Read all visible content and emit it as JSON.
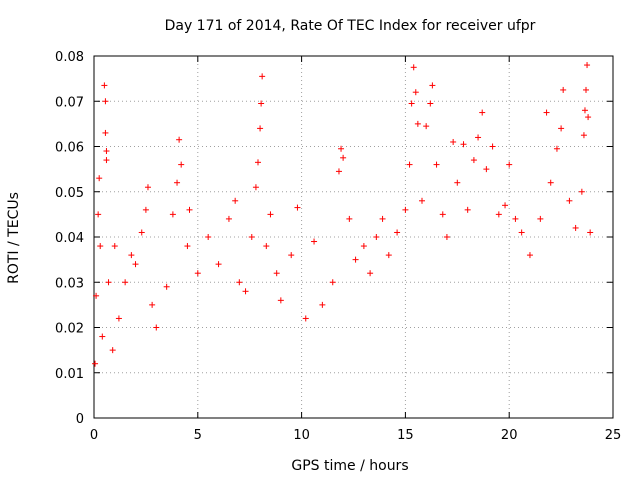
{
  "chart_data": {
    "type": "scatter",
    "title": "Day 171 of 2014, Rate Of TEC Index for receiver ufpr",
    "xlabel": "GPS time / hours",
    "ylabel": "ROTI / TECUs",
    "xlim": [
      0,
      25
    ],
    "ylim": [
      0,
      0.08
    ],
    "grid": true,
    "marker": "+",
    "color": "#ff0000",
    "x_ticks": [
      0,
      5,
      10,
      15,
      20,
      25
    ],
    "x_tick_labels": [
      "0",
      "5",
      "10",
      "15",
      "20",
      "25"
    ],
    "y_ticks": [
      0,
      0.01,
      0.02,
      0.03,
      0.04,
      0.05,
      0.06,
      0.07,
      0.08
    ],
    "y_tick_labels": [
      "0",
      "0.01",
      "0.02",
      "0.03",
      "0.04",
      "0.05",
      "0.06",
      "0.07",
      "0.08"
    ],
    "series": [
      {
        "name": "ROTI",
        "points": [
          [
            0.05,
            0.012
          ],
          [
            0.1,
            0.027
          ],
          [
            0.2,
            0.045
          ],
          [
            0.25,
            0.053
          ],
          [
            0.3,
            0.038
          ],
          [
            0.4,
            0.018
          ],
          [
            0.5,
            0.0735
          ],
          [
            0.55,
            0.07
          ],
          [
            0.55,
            0.063
          ],
          [
            0.6,
            0.059
          ],
          [
            0.6,
            0.057
          ],
          [
            0.7,
            0.03
          ],
          [
            0.9,
            0.015
          ],
          [
            1.0,
            0.038
          ],
          [
            1.2,
            0.022
          ],
          [
            1.5,
            0.03
          ],
          [
            1.8,
            0.036
          ],
          [
            2.0,
            0.034
          ],
          [
            2.3,
            0.041
          ],
          [
            2.5,
            0.046
          ],
          [
            2.6,
            0.051
          ],
          [
            2.8,
            0.025
          ],
          [
            3.0,
            0.02
          ],
          [
            3.5,
            0.029
          ],
          [
            3.8,
            0.045
          ],
          [
            4.0,
            0.052
          ],
          [
            4.1,
            0.0615
          ],
          [
            4.2,
            0.056
          ],
          [
            4.5,
            0.038
          ],
          [
            4.6,
            0.046
          ],
          [
            5.0,
            0.032
          ],
          [
            5.5,
            0.04
          ],
          [
            6.0,
            0.034
          ],
          [
            6.5,
            0.044
          ],
          [
            6.8,
            0.048
          ],
          [
            7.0,
            0.03
          ],
          [
            7.3,
            0.028
          ],
          [
            7.6,
            0.04
          ],
          [
            7.8,
            0.051
          ],
          [
            7.9,
            0.0565
          ],
          [
            8.0,
            0.064
          ],
          [
            8.05,
            0.0695
          ],
          [
            8.1,
            0.0755
          ],
          [
            8.3,
            0.038
          ],
          [
            8.5,
            0.045
          ],
          [
            8.8,
            0.032
          ],
          [
            9.0,
            0.026
          ],
          [
            9.5,
            0.036
          ],
          [
            9.8,
            0.0465
          ],
          [
            10.2,
            0.022
          ],
          [
            10.6,
            0.039
          ],
          [
            11.0,
            0.025
          ],
          [
            11.5,
            0.03
          ],
          [
            11.8,
            0.0545
          ],
          [
            11.9,
            0.0595
          ],
          [
            12.0,
            0.0575
          ],
          [
            12.3,
            0.044
          ],
          [
            12.6,
            0.035
          ],
          [
            13.0,
            0.038
          ],
          [
            13.3,
            0.032
          ],
          [
            13.6,
            0.04
          ],
          [
            13.9,
            0.044
          ],
          [
            14.2,
            0.036
          ],
          [
            14.6,
            0.041
          ],
          [
            15.0,
            0.046
          ],
          [
            15.2,
            0.056
          ],
          [
            15.3,
            0.0695
          ],
          [
            15.4,
            0.0775
          ],
          [
            15.5,
            0.072
          ],
          [
            15.6,
            0.065
          ],
          [
            15.8,
            0.048
          ],
          [
            16.0,
            0.0645
          ],
          [
            16.2,
            0.0695
          ],
          [
            16.3,
            0.0735
          ],
          [
            16.5,
            0.056
          ],
          [
            16.8,
            0.045
          ],
          [
            17.0,
            0.04
          ],
          [
            17.3,
            0.061
          ],
          [
            17.5,
            0.052
          ],
          [
            17.8,
            0.0605
          ],
          [
            18.0,
            0.046
          ],
          [
            18.3,
            0.057
          ],
          [
            18.5,
            0.062
          ],
          [
            18.7,
            0.0675
          ],
          [
            18.9,
            0.055
          ],
          [
            19.2,
            0.06
          ],
          [
            19.5,
            0.045
          ],
          [
            19.8,
            0.047
          ],
          [
            20.0,
            0.056
          ],
          [
            20.3,
            0.044
          ],
          [
            20.6,
            0.041
          ],
          [
            21.0,
            0.036
          ],
          [
            21.5,
            0.044
          ],
          [
            21.8,
            0.0675
          ],
          [
            22.0,
            0.052
          ],
          [
            22.3,
            0.0595
          ],
          [
            22.5,
            0.064
          ],
          [
            22.6,
            0.0725
          ],
          [
            22.9,
            0.048
          ],
          [
            23.2,
            0.042
          ],
          [
            23.5,
            0.05
          ],
          [
            23.6,
            0.0625
          ],
          [
            23.65,
            0.068
          ],
          [
            23.7,
            0.0725
          ],
          [
            23.75,
            0.078
          ],
          [
            23.8,
            0.0665
          ],
          [
            23.9,
            0.041
          ]
        ]
      }
    ]
  }
}
